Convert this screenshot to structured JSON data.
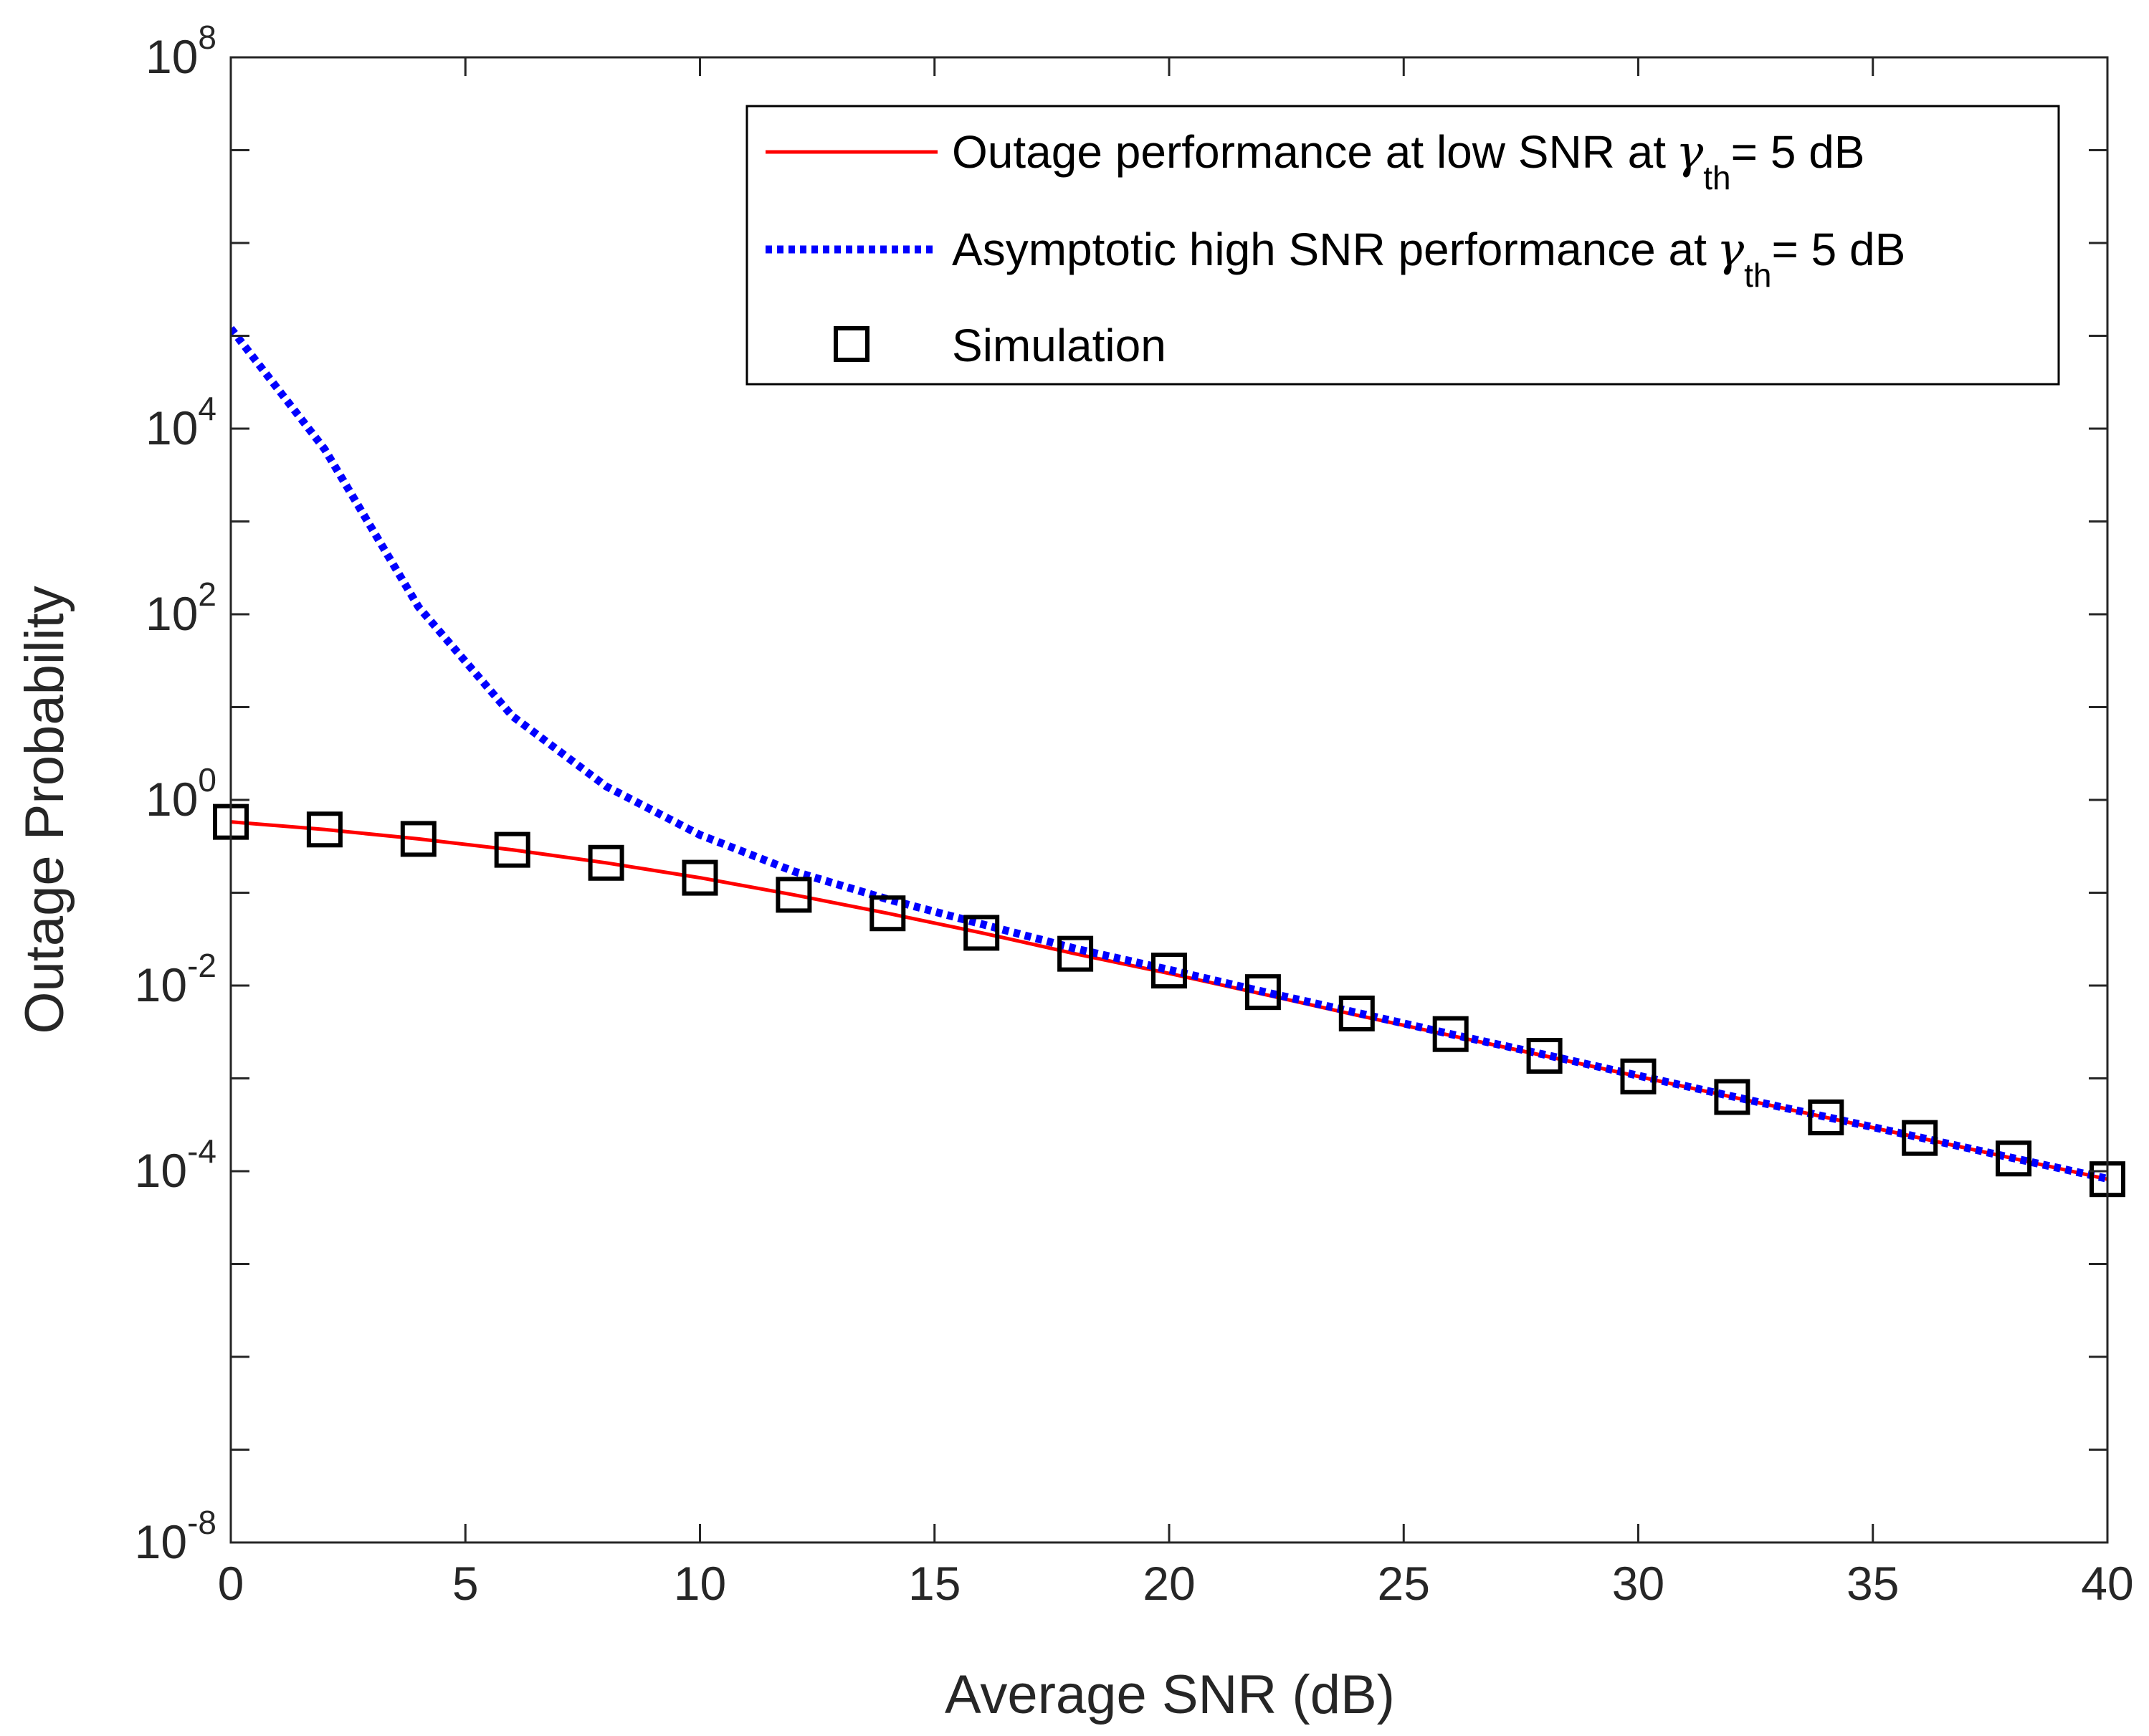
{
  "chart_data": {
    "type": "line",
    "title": "",
    "xlabel": "Average SNR (dB)",
    "ylabel": "Outage Probability",
    "xlim": [
      0,
      40
    ],
    "ylim_log10": [
      -8,
      8
    ],
    "yscale": "log",
    "grid": false,
    "legend_position": "top-right",
    "x_ticks": [
      {
        "value": 0,
        "label": "0"
      },
      {
        "value": 5,
        "label": "5"
      },
      {
        "value": 10,
        "label": "10"
      },
      {
        "value": 15,
        "label": "15"
      },
      {
        "value": 20,
        "label": "20"
      },
      {
        "value": 25,
        "label": "25"
      },
      {
        "value": 30,
        "label": "30"
      },
      {
        "value": 35,
        "label": "35"
      },
      {
        "value": 40,
        "label": "40"
      }
    ],
    "y_ticks": [
      {
        "exp": -8,
        "base": "10",
        "sup": "-8"
      },
      {
        "exp": -4,
        "base": "10",
        "sup": "-4"
      },
      {
        "exp": -2,
        "base": "10",
        "sup": "-2"
      },
      {
        "exp": 0,
        "base": "10",
        "sup": "0"
      },
      {
        "exp": 2,
        "base": "10",
        "sup": "2"
      },
      {
        "exp": 4,
        "base": "10",
        "sup": "4"
      },
      {
        "exp": 8,
        "base": "10",
        "sup": "8"
      }
    ],
    "x": [
      0,
      2,
      4,
      6,
      8,
      10,
      12,
      14,
      16,
      18,
      20,
      22,
      24,
      26,
      28,
      30,
      32,
      34,
      36,
      38,
      40
    ],
    "series": [
      {
        "name": "Outage performance at low SNR at",
        "legend_symbol": "γ",
        "legend_subscript": "th",
        "legend_suffix": "= 5 dB",
        "color": "#ff0000",
        "style": "solid",
        "values": [
          0.58,
          0.48,
          0.38,
          0.29,
          0.21,
          0.145,
          0.095,
          0.06,
          0.037,
          0.022,
          0.0135,
          0.0081,
          0.0048,
          0.0029,
          0.00175,
          0.00105,
          0.00063,
          0.00038,
          0.000228,
          0.000137,
          8.2e-05
        ]
      },
      {
        "name": "Asymptotic high SNR performance at",
        "legend_symbol": "γ",
        "legend_subscript": "th",
        "legend_suffix": "= 5 dB",
        "color": "#0000ff",
        "style": "dotted",
        "values": [
          120000,
          6000,
          120,
          8,
          1.4,
          0.42,
          0.17,
          0.085,
          0.046,
          0.025,
          0.0148,
          0.0086,
          0.0051,
          0.003,
          0.0018,
          0.00107,
          0.00064,
          0.000385,
          0.000231,
          0.000138,
          8.3e-05
        ]
      },
      {
        "name": "Simulation",
        "color": "#000000",
        "style": "marker-square",
        "values": [
          0.58,
          0.48,
          0.38,
          0.29,
          0.21,
          0.145,
          0.095,
          0.06,
          0.037,
          0.022,
          0.0145,
          0.0085,
          0.005,
          0.003,
          0.00175,
          0.00105,
          0.00063,
          0.00038,
          0.000228,
          0.000137,
          8.2e-05
        ]
      }
    ]
  }
}
